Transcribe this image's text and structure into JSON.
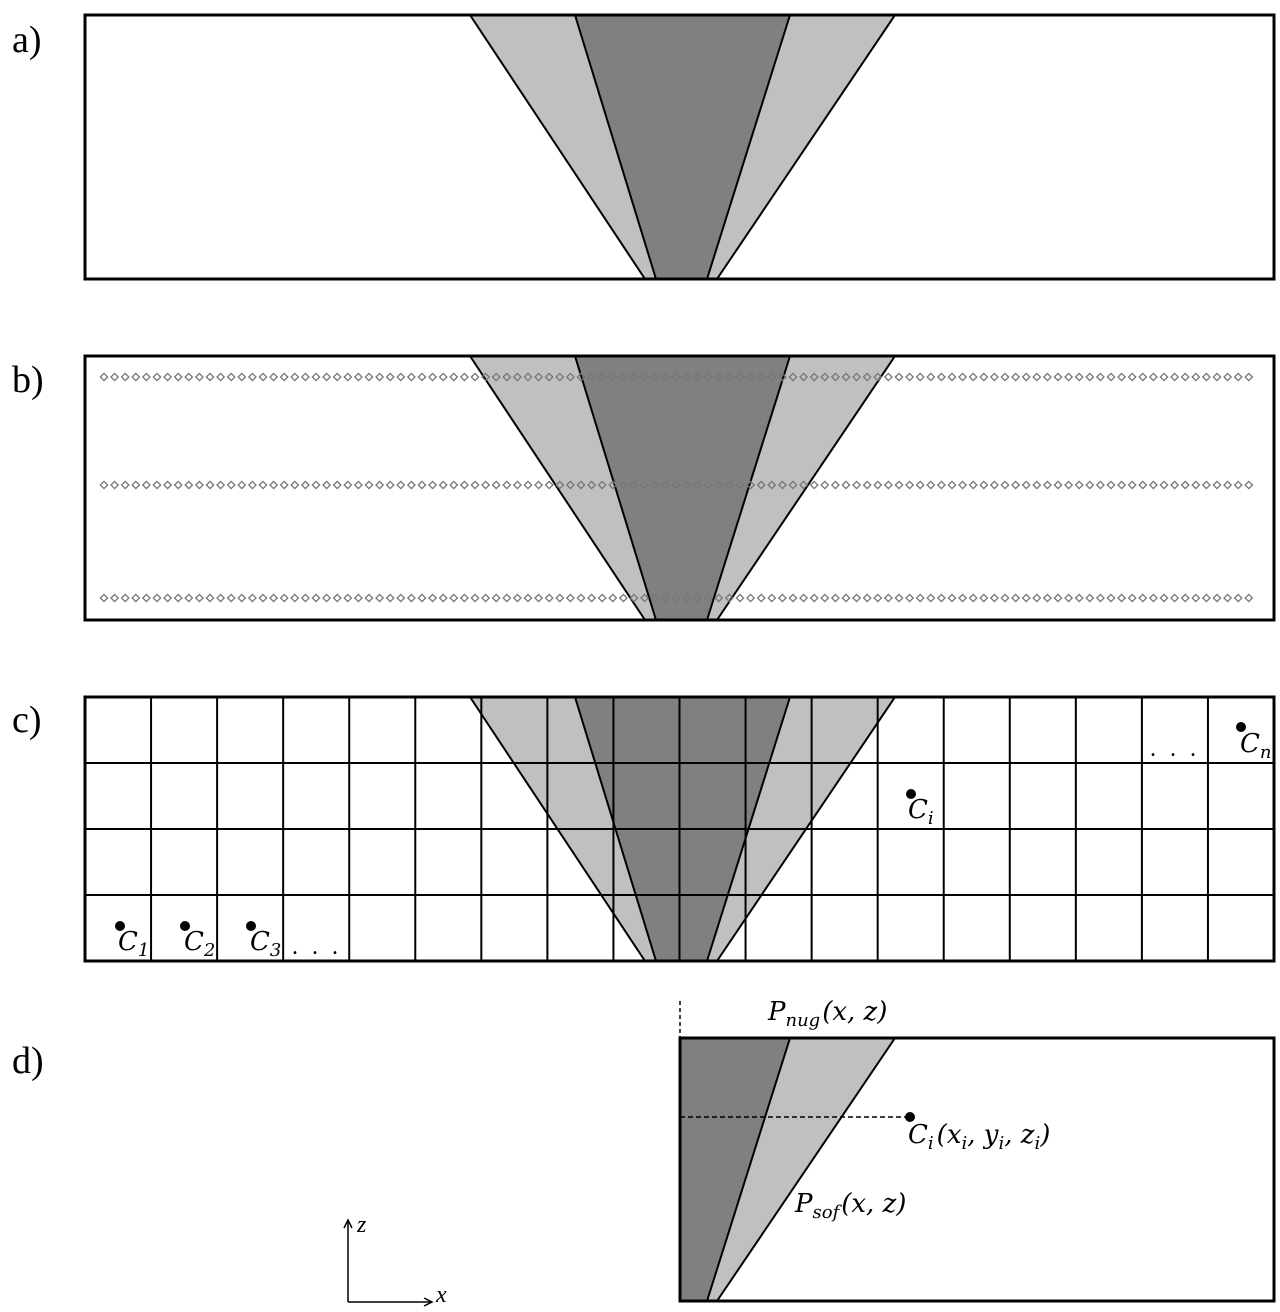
{
  "colors": {
    "background": "#ffffff",
    "outline": "#000000",
    "nugget_zone": "#808080",
    "soft_zone": "#c0c0c0",
    "sample_point": "#777777"
  },
  "panels": {
    "a": {
      "label": "a)"
    },
    "b": {
      "label": "b)",
      "sample_rows": 3
    },
    "c": {
      "label": "c)",
      "cells": [
        {
          "base": "C",
          "sub": "1"
        },
        {
          "base": "C",
          "sub": "2"
        },
        {
          "base": "C",
          "sub": "3"
        },
        {
          "base": "C",
          "sub": "i"
        },
        {
          "base": "C",
          "sub": "n"
        }
      ],
      "ellipsis": ". . ."
    },
    "d": {
      "label": "d)",
      "nugget_profile": {
        "base": "P",
        "sub": "nug",
        "args": "(x, z)"
      },
      "soft_profile": {
        "base": "P",
        "sub": "sof",
        "args": "(x, z)"
      },
      "point": {
        "base": "C",
        "sub": "i",
        "open": "(",
        "x": "x",
        "x_sub": "i",
        "y": "y",
        "y_sub": "i",
        "z": "z",
        "z_sub": "i",
        "close": ")",
        "sep": ", "
      },
      "axes": {
        "vertical": "z",
        "horizontal": "x"
      }
    }
  }
}
